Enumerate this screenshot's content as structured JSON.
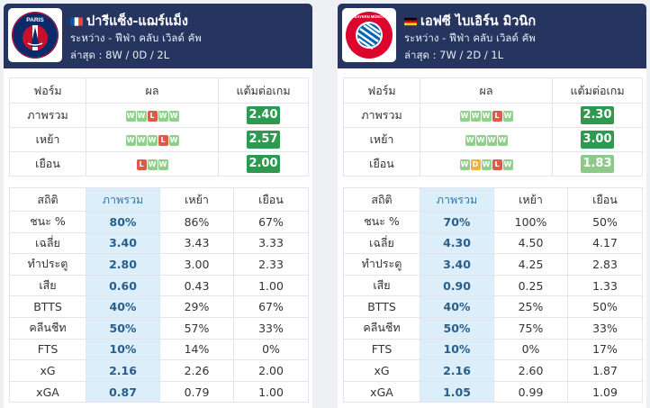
{
  "colors": {
    "header_bg": "#253560",
    "highlight_col": "#dbeefa",
    "win": "#8fd08a",
    "draw": "#f2b233",
    "loss": "#d95b4a",
    "ppg_dark": "#2e9a4f",
    "ppg_light": "#8fc98a"
  },
  "teams": [
    {
      "name": "ปารีแซ็ง-แฌร์แม็ง",
      "flag_icon": "france-flag-icon",
      "logo_text": "PARIS",
      "competition": "ระหว่าง - ฟีฟ่า คลับ เวิลด์ คัพ",
      "last": "ล่าสุด : 8W / 0D / 2L",
      "form_headers": [
        "ฟอร์ม",
        "ผล",
        "แต้มต่อเกม"
      ],
      "form_rows": [
        {
          "label": "ภาพรวม",
          "results": [
            "W",
            "W",
            "L",
            "W",
            "W"
          ],
          "ppg": "2.40"
        },
        {
          "label": "เหย้า",
          "results": [
            "W",
            "W",
            "W",
            "L",
            "W"
          ],
          "ppg": "2.57"
        },
        {
          "label": "เยือน",
          "results": [
            "L",
            "W",
            "W"
          ],
          "ppg": "2.00"
        }
      ],
      "stats_headers": [
        "สถิติ",
        "ภาพรวม",
        "เหย้า",
        "เยือน"
      ],
      "stats_rows": [
        {
          "label": "ชนะ %",
          "overall": "80%",
          "home": "86%",
          "away": "67%"
        },
        {
          "label": "เฉลี่ย",
          "overall": "3.40",
          "home": "3.43",
          "away": "3.33"
        },
        {
          "label": "ทำประตู",
          "overall": "2.80",
          "home": "3.00",
          "away": "2.33"
        },
        {
          "label": "เสีย",
          "overall": "0.60",
          "home": "0.43",
          "away": "1.00"
        },
        {
          "label": "BTTS",
          "overall": "40%",
          "home": "29%",
          "away": "67%"
        },
        {
          "label": "คลีนชีท",
          "overall": "50%",
          "home": "57%",
          "away": "33%"
        },
        {
          "label": "FTS",
          "overall": "10%",
          "home": "14%",
          "away": "0%"
        },
        {
          "label": "xG",
          "overall": "2.16",
          "home": "2.26",
          "away": "2.00"
        },
        {
          "label": "xGA",
          "overall": "0.87",
          "home": "0.79",
          "away": "1.00"
        }
      ]
    },
    {
      "name": "เอฟซี ไบเอิร์น มิวนิก",
      "flag_icon": "germany-flag-icon",
      "logo_text": "FC BAYERN MÜNCHEN",
      "competition": "ระหว่าง - ฟีฟ่า คลับ เวิลด์ คัพ",
      "last": "ล่าสุด : 7W / 2D / 1L",
      "form_headers": [
        "ฟอร์ม",
        "ผล",
        "แต้มต่อเกม"
      ],
      "form_rows": [
        {
          "label": "ภาพรวม",
          "results": [
            "W",
            "W",
            "W",
            "L",
            "W"
          ],
          "ppg": "2.30"
        },
        {
          "label": "เหย้า",
          "results": [
            "W",
            "W",
            "W",
            "W"
          ],
          "ppg": "3.00"
        },
        {
          "label": "เยือน",
          "results": [
            "W",
            "D",
            "W",
            "L",
            "W"
          ],
          "ppg": "1.83"
        }
      ],
      "stats_headers": [
        "สถิติ",
        "ภาพรวม",
        "เหย้า",
        "เยือน"
      ],
      "stats_rows": [
        {
          "label": "ชนะ %",
          "overall": "70%",
          "home": "100%",
          "away": "50%"
        },
        {
          "label": "เฉลี่ย",
          "overall": "4.30",
          "home": "4.50",
          "away": "4.17"
        },
        {
          "label": "ทำประตู",
          "overall": "3.40",
          "home": "4.25",
          "away": "2.83"
        },
        {
          "label": "เสีย",
          "overall": "0.90",
          "home": "0.25",
          "away": "1.33"
        },
        {
          "label": "BTTS",
          "overall": "40%",
          "home": "25%",
          "away": "50%"
        },
        {
          "label": "คลีนชีท",
          "overall": "50%",
          "home": "75%",
          "away": "33%"
        },
        {
          "label": "FTS",
          "overall": "10%",
          "home": "0%",
          "away": "17%"
        },
        {
          "label": "xG",
          "overall": "2.16",
          "home": "2.60",
          "away": "1.87"
        },
        {
          "label": "xGA",
          "overall": "1.05",
          "home": "0.99",
          "away": "1.09"
        }
      ]
    }
  ]
}
